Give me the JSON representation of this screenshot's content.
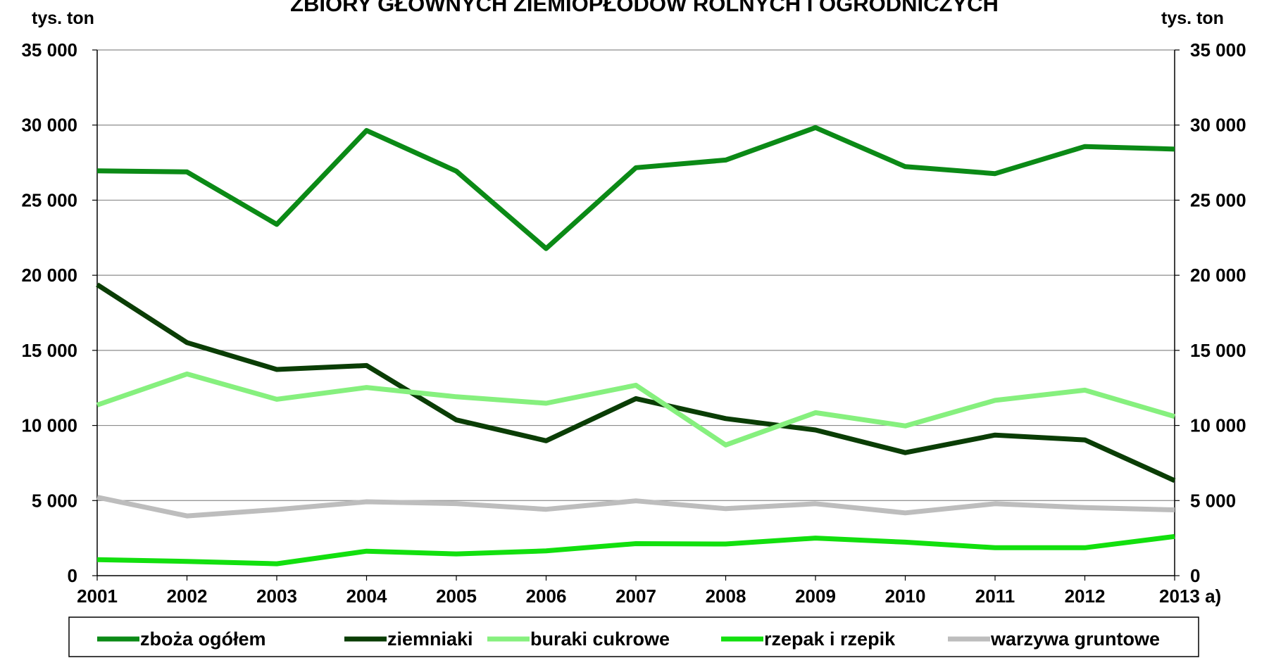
{
  "chart_data": {
    "type": "line",
    "title": "ZBIORY GŁÓWNYCH ZIEMIOPŁODÓW ROLNYCH I OGRODNICZYCH",
    "y_unit_left": "tys. ton",
    "y_unit_right": "tys. ton",
    "x": [
      "2001",
      "2002",
      "2003",
      "2004",
      "2005",
      "2006",
      "2007",
      "2008",
      "2009",
      "2010",
      "2011",
      "2012",
      "2013 a)"
    ],
    "ylim": [
      0,
      35000
    ],
    "yticks": [
      0,
      5000,
      10000,
      15000,
      20000,
      25000,
      30000,
      35000
    ],
    "ytick_labels": [
      "0",
      "5 000",
      "10 000",
      "15 000",
      "20 000",
      "25 000",
      "30 000",
      "35 000"
    ],
    "grid": true,
    "legend_position": "bottom",
    "series": [
      {
        "name": "zboża ogółem",
        "color": "#0b8a16",
        "values": [
          26950,
          26880,
          23390,
          29640,
          26930,
          21780,
          27160,
          27670,
          29830,
          27230,
          26770,
          28570,
          28400
        ]
      },
      {
        "name": "ziemniaki",
        "color": "#0a3d05",
        "values": [
          19380,
          15520,
          13730,
          13990,
          10370,
          8980,
          11790,
          10460,
          9700,
          8190,
          9360,
          9040,
          6330
        ]
      },
      {
        "name": "buraki cukrowe",
        "color": "#86f07e",
        "values": [
          11360,
          13430,
          11740,
          12530,
          11910,
          11480,
          12680,
          8700,
          10850,
          9970,
          11670,
          12350,
          10600
        ]
      },
      {
        "name": "rzepak i rzepik",
        "color": "#12e00e",
        "values": [
          1070,
          950,
          790,
          1630,
          1450,
          1650,
          2130,
          2110,
          2500,
          2230,
          1860,
          1860,
          2610
        ]
      },
      {
        "name": "warzywa gruntowe",
        "color": "#bdbdbd",
        "values": [
          5220,
          3980,
          4400,
          4920,
          4800,
          4420,
          4980,
          4460,
          4790,
          4180,
          4790,
          4530,
          4380
        ]
      }
    ]
  }
}
